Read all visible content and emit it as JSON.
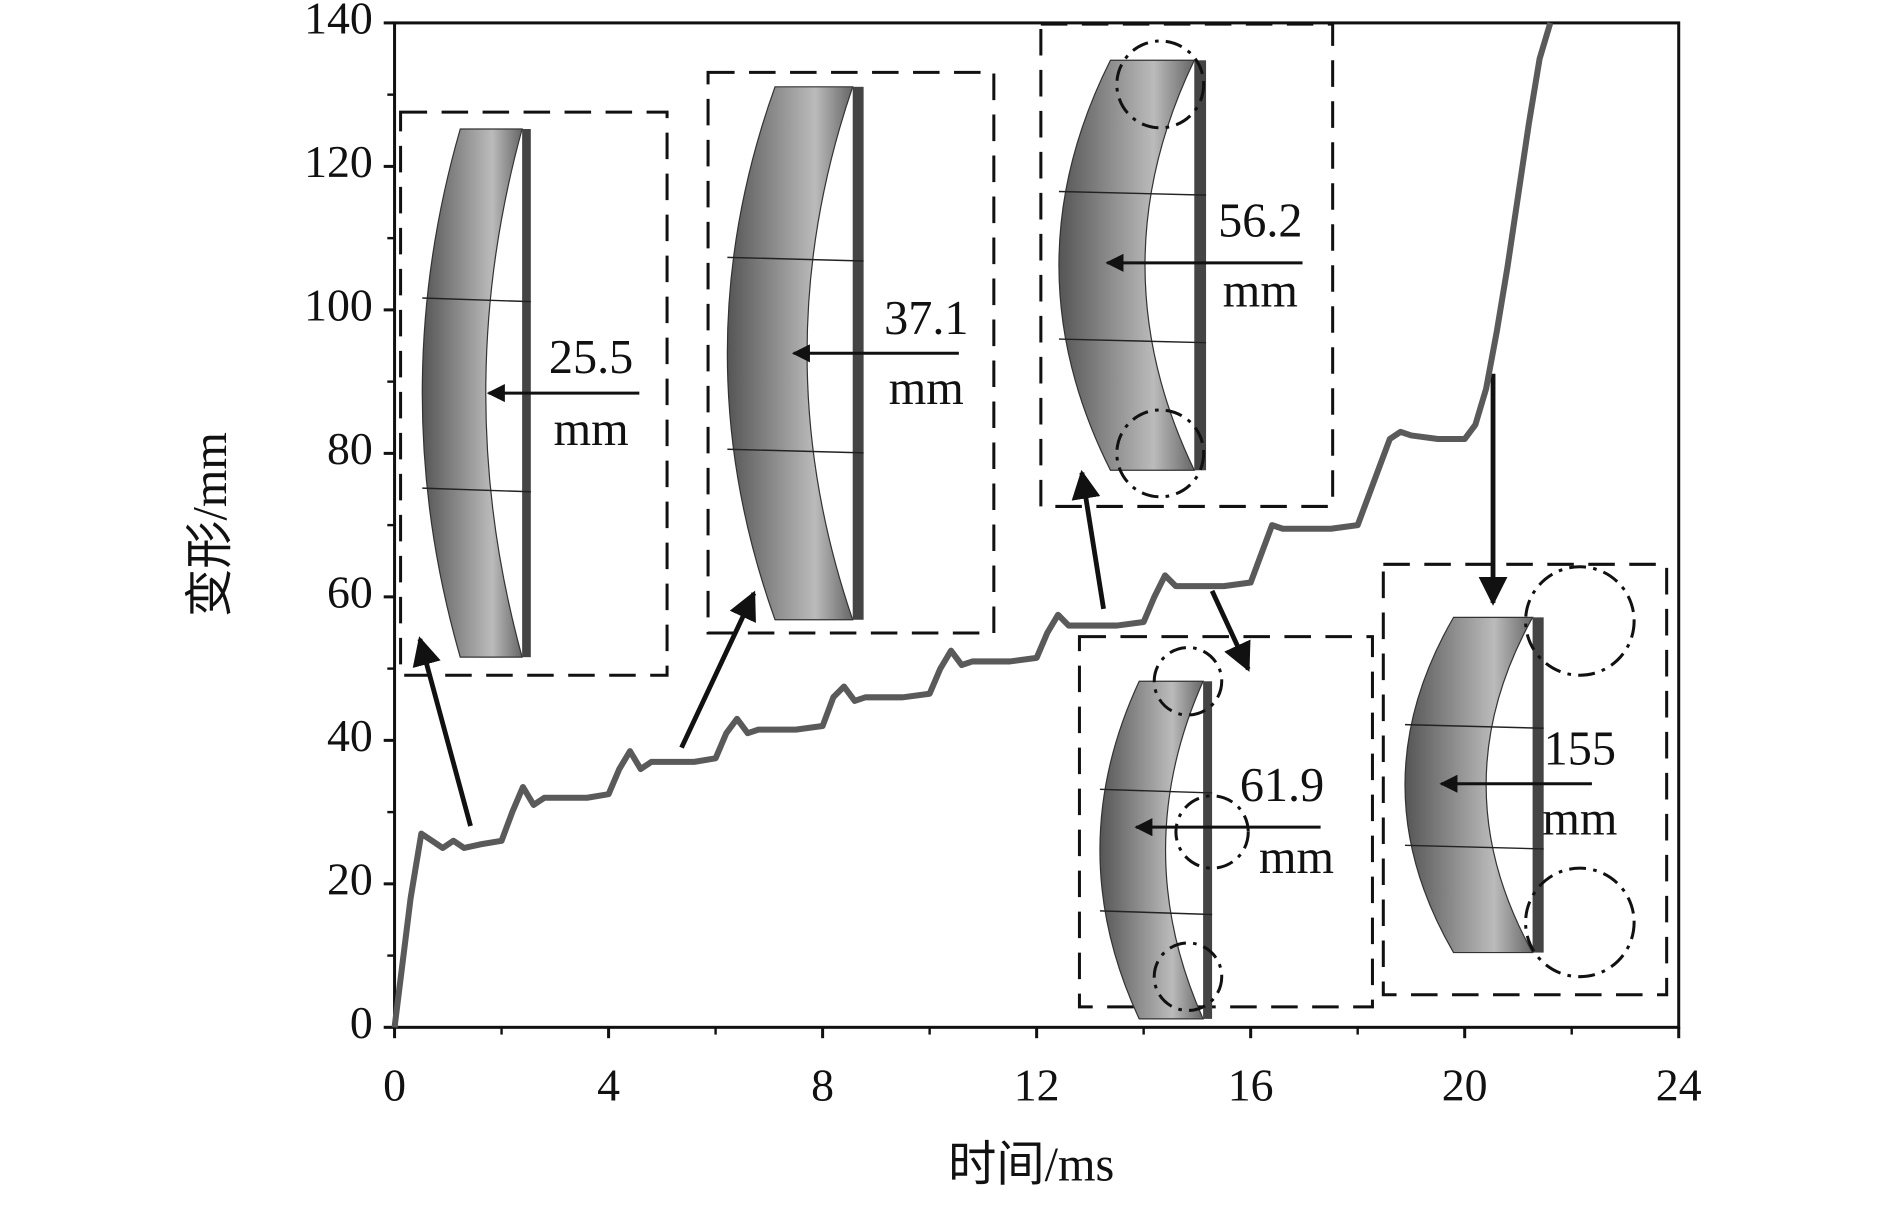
{
  "chart_data": {
    "type": "line",
    "x_label": "时间/ms",
    "y_label": "变形/mm",
    "xlim": [
      0,
      24
    ],
    "xticks": [
      0,
      4,
      8,
      12,
      16,
      20,
      24
    ],
    "ylim": [
      0,
      140
    ],
    "yticks": [
      0,
      20,
      40,
      60,
      80,
      100,
      120,
      140
    ],
    "color": "#5a5a5a",
    "x": [
      0,
      0.3,
      0.5,
      0.7,
      0.9,
      1.1,
      1.3,
      1.6,
      2.0,
      2.2,
      2.4,
      2.6,
      2.8,
      3.2,
      3.6,
      4.0,
      4.2,
      4.4,
      4.6,
      4.8,
      5.2,
      5.6,
      6.0,
      6.2,
      6.4,
      6.6,
      6.8,
      7.5,
      8.0,
      8.2,
      8.4,
      8.6,
      8.8,
      9.5,
      10.0,
      10.2,
      10.4,
      10.6,
      10.8,
      11.5,
      12.0,
      12.2,
      12.4,
      12.6,
      13.0,
      13.5,
      14.0,
      14.2,
      14.4,
      14.6,
      15.0,
      15.5,
      16.0,
      16.2,
      16.4,
      16.6,
      17.0,
      17.5,
      18.0,
      18.2,
      18.4,
      18.6,
      18.8,
      19.0,
      19.5,
      20.0,
      20.2,
      20.4,
      20.6,
      20.8,
      21.0,
      21.2,
      21.4,
      21.6
    ],
    "values": [
      0,
      18,
      27,
      26,
      25,
      26,
      25,
      25.5,
      26,
      30,
      33.5,
      31,
      32,
      32,
      32,
      32.5,
      36,
      38.5,
      36,
      37,
      37,
      37,
      37.5,
      41,
      43,
      41,
      41.5,
      41.5,
      42,
      46,
      47.5,
      45.5,
      46,
      46,
      46.5,
      50,
      52.5,
      50.5,
      51,
      51,
      51.5,
      55,
      57.5,
      56,
      56,
      56,
      56.5,
      60,
      63,
      61.5,
      61.5,
      61.5,
      62,
      66,
      70,
      69.5,
      69.5,
      69.5,
      70,
      74,
      78,
      82,
      83,
      82.5,
      82,
      82,
      84,
      89,
      97,
      106,
      116,
      126,
      135,
      140
    ],
    "annotations": [
      {
        "text": "25.5",
        "unit": "mm"
      },
      {
        "text": "37.1",
        "unit": "mm"
      },
      {
        "text": "56.2",
        "unit": "mm"
      },
      {
        "text": "61.9",
        "unit": "mm"
      },
      {
        "text": "155",
        "unit": "mm"
      }
    ]
  }
}
